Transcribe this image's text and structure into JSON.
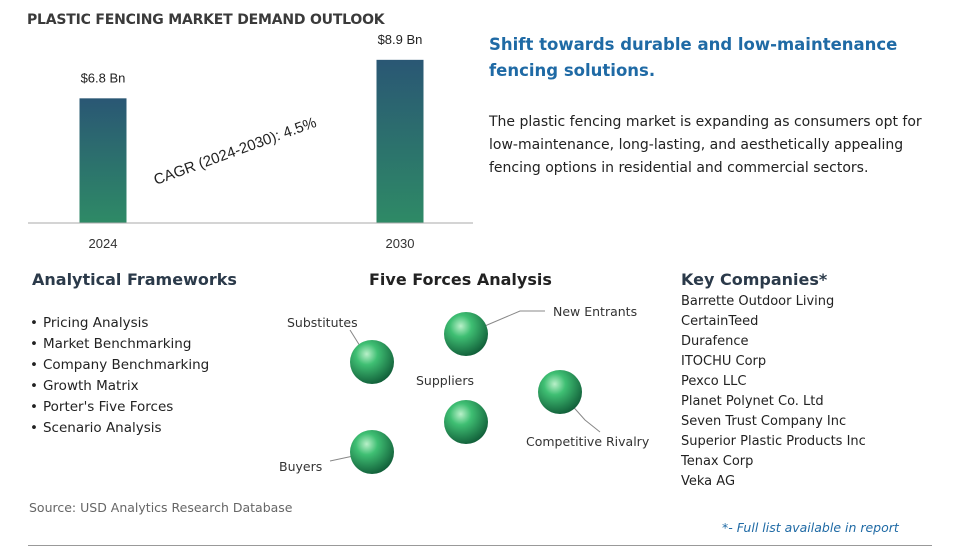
{
  "header": {
    "title": "PLASTIC FENCING MARKET DEMAND OUTLOOK"
  },
  "chart_data": {
    "type": "bar",
    "title": "PLASTIC FENCING MARKET DEMAND OUTLOOK",
    "categories": [
      "2024",
      "2030"
    ],
    "values": [
      6.8,
      8.9
    ],
    "data_labels": [
      "$6.8 Bn",
      "$8.9 Bn"
    ],
    "unit": "Bn",
    "ylim": [
      0,
      9
    ],
    "grid": false,
    "annotation": "CAGR (2024-2030):  4.5%",
    "colors": {
      "bar_top": "#2a5774",
      "bar_bottom": "#2e8a66"
    }
  },
  "headline": "Shift towards durable and low-maintenance fencing solutions.",
  "description": "The plastic fencing market is expanding as consumers opt for low-maintenance, long-lasting, and aesthetically appealing fencing options in residential and commercial sectors.",
  "frameworks": {
    "heading": "Analytical Frameworks",
    "items": [
      "Pricing Analysis",
      "Market Benchmarking",
      "Company Benchmarking",
      "Growth Matrix",
      "Porter's Five Forces",
      "Scenario Analysis"
    ]
  },
  "five_forces": {
    "heading": "Five Forces Analysis",
    "labels": {
      "substitutes": "Substitutes",
      "new_entrants": "New Entrants",
      "suppliers": "Suppliers",
      "competitive_rivalry": "Competitive Rivalry",
      "buyers": "Buyers"
    }
  },
  "companies": {
    "heading": "Key Companies*",
    "items": [
      "Barrette Outdoor Living",
      "CertainTeed",
      "Durafence",
      "ITOCHU Corp",
      "Pexco LLC",
      "Planet Polynet Co. Ltd",
      "Seven Trust Company Inc",
      "Superior Plastic Products Inc",
      "Tenax Corp",
      "Veka AG"
    ]
  },
  "source": "Source: USD Analytics Research Database",
  "footnote": "*- Full list available in report",
  "colors": {
    "accent": "#1f6aa5",
    "sphere": "#2e9a5c"
  }
}
